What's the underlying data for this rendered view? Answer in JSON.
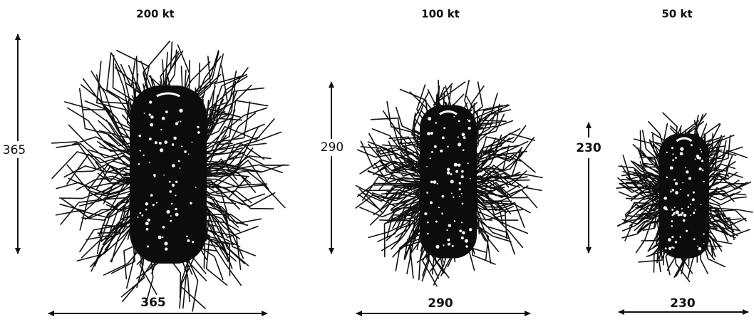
{
  "panels": [
    {
      "title": "200 kt",
      "height": "365",
      "width": "365"
    },
    {
      "title": "100 kt",
      "height": "290",
      "width": "290"
    },
    {
      "title": "50 kt",
      "height": "230",
      "width": "230"
    }
  ]
}
